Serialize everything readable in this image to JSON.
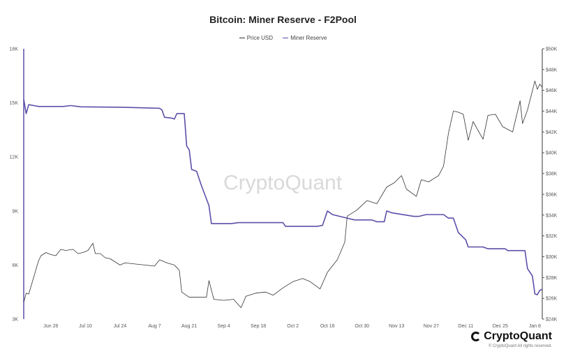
{
  "chart_data": {
    "type": "line",
    "title": "Bitcoin: Miner Reserve - F2Pool",
    "legend": [
      "Price USD",
      "Miner Reserve"
    ],
    "legend_position": "top-center",
    "watermark": "CryptoQuant",
    "x_range": [
      "2023-06-15",
      "2024-01-11"
    ],
    "x_ticks": [
      "Jun 26",
      "Jul 10",
      "Jul 24",
      "Aug 7",
      "Aug 21",
      "Sep 4",
      "Sep 18",
      "Oct 2",
      "Oct 16",
      "Oct 30",
      "Nov 13",
      "Nov 27",
      "Dec 11",
      "Dec 25",
      "Jan 8"
    ],
    "x_tick_dates": [
      "2023-06-26",
      "2023-07-10",
      "2023-07-24",
      "2023-08-07",
      "2023-08-21",
      "2023-09-04",
      "2023-09-18",
      "2023-10-02",
      "2023-10-16",
      "2023-10-30",
      "2023-11-13",
      "2023-11-27",
      "2023-12-11",
      "2023-12-25",
      "2024-01-08"
    ],
    "y_left": {
      "ylim": [
        3000,
        18000
      ],
      "ticks": [
        "3K",
        "6K",
        "9K",
        "12K",
        "15K",
        "18K"
      ]
    },
    "y_right": {
      "ylim": [
        24000,
        50000
      ],
      "ticks": [
        "$24K",
        "$26K",
        "$28K",
        "$30K",
        "$32K",
        "$34K",
        "$36K",
        "$38K",
        "$40K",
        "$42K",
        "$44K",
        "$46K",
        "$48K",
        "$50K"
      ]
    },
    "grid": false,
    "series": [
      {
        "name": "Miner Reserve",
        "axis": "left",
        "color": "#5b4fa8",
        "points": [
          [
            "2023-06-15",
            15200
          ],
          [
            "2023-06-16",
            14400
          ],
          [
            "2023-06-17",
            14900
          ],
          [
            "2023-06-19",
            14850
          ],
          [
            "2023-06-21",
            14800
          ],
          [
            "2023-07-01",
            14800
          ],
          [
            "2023-07-04",
            14850
          ],
          [
            "2023-07-08",
            14780
          ],
          [
            "2023-07-26",
            14750
          ],
          [
            "2023-08-09",
            14700
          ],
          [
            "2023-08-10",
            14600
          ],
          [
            "2023-08-11",
            14200
          ],
          [
            "2023-08-14",
            14150
          ],
          [
            "2023-08-15",
            14100
          ],
          [
            "2023-08-16",
            14400
          ],
          [
            "2023-08-19",
            14400
          ],
          [
            "2023-08-20",
            12600
          ],
          [
            "2023-08-21",
            12400
          ],
          [
            "2023-08-22",
            11300
          ],
          [
            "2023-08-24",
            11200
          ],
          [
            "2023-08-26",
            10400
          ],
          [
            "2023-08-29",
            9300
          ],
          [
            "2023-08-30",
            8300
          ],
          [
            "2023-09-07",
            8300
          ],
          [
            "2023-09-10",
            8350
          ],
          [
            "2023-09-28",
            8350
          ],
          [
            "2023-09-29",
            8150
          ],
          [
            "2023-10-12",
            8150
          ],
          [
            "2023-10-14",
            8200
          ],
          [
            "2023-10-16",
            9000
          ],
          [
            "2023-10-18",
            8800
          ],
          [
            "2023-10-24",
            8600
          ],
          [
            "2023-10-27",
            8500
          ],
          [
            "2023-11-03",
            8500
          ],
          [
            "2023-11-05",
            8400
          ],
          [
            "2023-11-08",
            8400
          ],
          [
            "2023-11-09",
            9000
          ],
          [
            "2023-11-11",
            8900
          ],
          [
            "2023-11-20",
            8700
          ],
          [
            "2023-11-22",
            8700
          ],
          [
            "2023-11-25",
            8800
          ],
          [
            "2023-12-02",
            8800
          ],
          [
            "2023-12-04",
            8600
          ],
          [
            "2023-12-06",
            8600
          ],
          [
            "2023-12-08",
            7800
          ],
          [
            "2023-12-11",
            7400
          ],
          [
            "2023-12-12",
            7000
          ],
          [
            "2023-12-18",
            7000
          ],
          [
            "2023-12-20",
            6900
          ],
          [
            "2023-12-27",
            6900
          ],
          [
            "2023-12-28",
            6800
          ],
          [
            "2024-01-04",
            6800
          ],
          [
            "2024-01-05",
            5800
          ],
          [
            "2024-01-07",
            5400
          ],
          [
            "2024-01-08",
            4400
          ],
          [
            "2024-01-09",
            4350
          ],
          [
            "2024-01-10",
            4600
          ],
          [
            "2024-01-11",
            4650
          ]
        ]
      },
      {
        "name": "Price USD",
        "axis": "right",
        "color": "#333333",
        "points": [
          [
            "2023-06-15",
            25600
          ],
          [
            "2023-06-16",
            26500
          ],
          [
            "2023-06-17",
            26400
          ],
          [
            "2023-06-19",
            28000
          ],
          [
            "2023-06-21",
            29600
          ],
          [
            "2023-06-22",
            30100
          ],
          [
            "2023-06-24",
            30400
          ],
          [
            "2023-06-26",
            30200
          ],
          [
            "2023-06-28",
            30100
          ],
          [
            "2023-06-30",
            30700
          ],
          [
            "2023-07-02",
            30600
          ],
          [
            "2023-07-05",
            30700
          ],
          [
            "2023-07-07",
            30300
          ],
          [
            "2023-07-09",
            30400
          ],
          [
            "2023-07-11",
            30600
          ],
          [
            "2023-07-13",
            31300
          ],
          [
            "2023-07-14",
            30300
          ],
          [
            "2023-07-16",
            30300
          ],
          [
            "2023-07-18",
            29900
          ],
          [
            "2023-07-20",
            29800
          ],
          [
            "2023-07-24",
            29200
          ],
          [
            "2023-07-26",
            29400
          ],
          [
            "2023-07-30",
            29300
          ],
          [
            "2023-08-03",
            29200
          ],
          [
            "2023-08-07",
            29100
          ],
          [
            "2023-08-09",
            29700
          ],
          [
            "2023-08-12",
            29400
          ],
          [
            "2023-08-15",
            29200
          ],
          [
            "2023-08-17",
            28700
          ],
          [
            "2023-08-18",
            26600
          ],
          [
            "2023-08-21",
            26100
          ],
          [
            "2023-08-24",
            26100
          ],
          [
            "2023-08-28",
            26100
          ],
          [
            "2023-08-29",
            27700
          ],
          [
            "2023-08-31",
            25900
          ],
          [
            "2023-09-04",
            25800
          ],
          [
            "2023-09-08",
            25900
          ],
          [
            "2023-09-11",
            25100
          ],
          [
            "2023-09-13",
            26200
          ],
          [
            "2023-09-17",
            26500
          ],
          [
            "2023-09-21",
            26600
          ],
          [
            "2023-09-24",
            26300
          ],
          [
            "2023-09-28",
            27000
          ],
          [
            "2023-10-02",
            27600
          ],
          [
            "2023-10-06",
            27900
          ],
          [
            "2023-10-09",
            27600
          ],
          [
            "2023-10-13",
            26900
          ],
          [
            "2023-10-16",
            28500
          ],
          [
            "2023-10-20",
            29700
          ],
          [
            "2023-10-23",
            31400
          ],
          [
            "2023-10-24",
            33900
          ],
          [
            "2023-10-28",
            34500
          ],
          [
            "2023-11-01",
            35400
          ],
          [
            "2023-11-05",
            35100
          ],
          [
            "2023-11-09",
            36700
          ],
          [
            "2023-11-12",
            37100
          ],
          [
            "2023-11-15",
            37800
          ],
          [
            "2023-11-17",
            36500
          ],
          [
            "2023-11-21",
            35800
          ],
          [
            "2023-11-23",
            37400
          ],
          [
            "2023-11-26",
            37200
          ],
          [
            "2023-11-30",
            37800
          ],
          [
            "2023-12-02",
            38700
          ],
          [
            "2023-12-04",
            41900
          ],
          [
            "2023-12-06",
            44000
          ],
          [
            "2023-12-08",
            43900
          ],
          [
            "2023-12-10",
            43700
          ],
          [
            "2023-12-12",
            41200
          ],
          [
            "2023-12-14",
            43000
          ],
          [
            "2023-12-18",
            41300
          ],
          [
            "2023-12-20",
            43600
          ],
          [
            "2023-12-23",
            43700
          ],
          [
            "2023-12-26",
            42500
          ],
          [
            "2023-12-30",
            42000
          ],
          [
            "2024-01-02",
            45000
          ],
          [
            "2024-01-03",
            42800
          ],
          [
            "2024-01-05",
            44100
          ],
          [
            "2024-01-08",
            46900
          ],
          [
            "2024-01-09",
            46100
          ],
          [
            "2024-01-10",
            46600
          ],
          [
            "2024-01-11",
            46300
          ]
        ]
      }
    ]
  },
  "brand": {
    "name": "CryptoQuant",
    "copyright": "© CryptoQuant All rights reserved."
  }
}
